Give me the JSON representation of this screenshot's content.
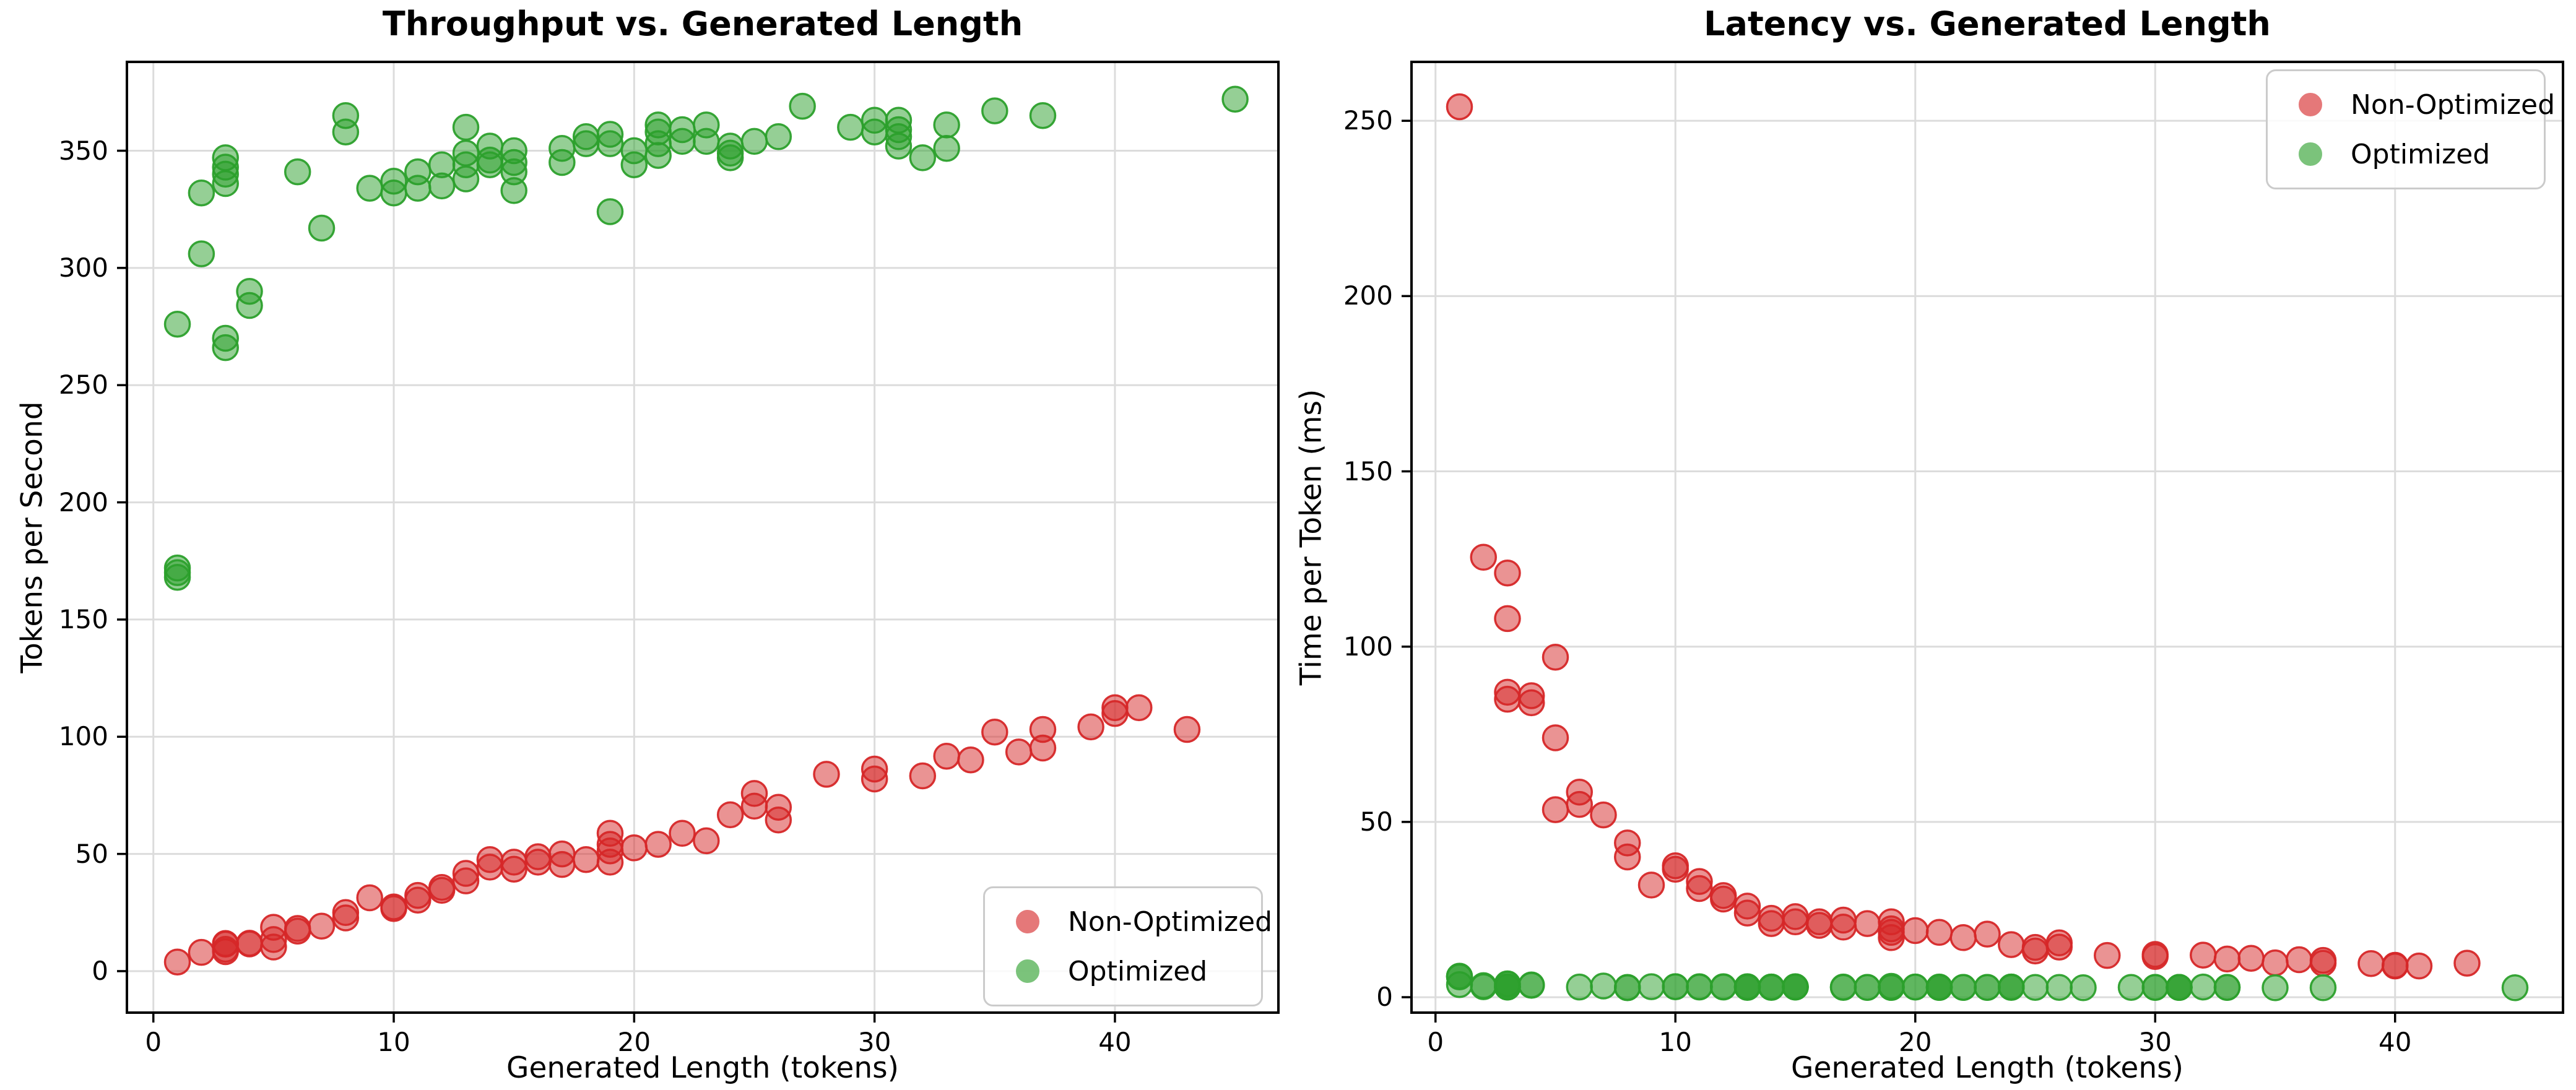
{
  "figure": {
    "background": "#ffffff"
  },
  "chart_data": [
    {
      "type": "scatter",
      "title": "Throughput vs. Generated Length",
      "xlabel": "Generated Length (tokens)",
      "ylabel": "Tokens per Second",
      "xlim": [
        -1.1,
        46.8
      ],
      "ylim": [
        -17.7,
        387.9
      ],
      "xticks": [
        0,
        10,
        20,
        30,
        40
      ],
      "yticks": [
        0,
        50,
        100,
        150,
        200,
        250,
        300,
        350
      ],
      "grid": true,
      "legend_position": "lower right",
      "series": [
        {
          "name": "Non-Optimized",
          "color": "#d62728",
          "x": [
            1,
            2,
            3,
            3,
            3,
            3,
            4,
            4,
            5,
            5,
            5,
            6,
            6,
            7,
            8,
            8,
            9,
            10,
            10,
            11,
            11,
            12,
            12,
            13,
            13,
            14,
            14,
            15,
            15,
            16,
            16,
            17,
            17,
            18,
            19,
            19,
            19,
            19,
            20,
            21,
            22,
            23,
            24,
            25,
            25,
            26,
            26,
            28,
            30,
            30,
            32,
            33,
            34,
            35,
            36,
            37,
            37,
            39,
            40,
            40,
            41,
            43
          ],
          "y": [
            3.9,
            8.0,
            8.3,
            9.3,
            11.5,
            11.8,
            11.6,
            11.9,
            10.3,
            13.5,
            18.7,
            17.1,
            18.2,
            19.2,
            22.7,
            25.0,
            31.3,
            26.7,
            27.4,
            30.3,
            32.3,
            34.5,
            35.7,
            38.5,
            41.7,
            44.4,
            47.6,
            43.5,
            46.5,
            46.5,
            48.8,
            45.5,
            50.0,
            47.6,
            46.5,
            51.3,
            54.1,
            58.8,
            52.6,
            54.1,
            58.8,
            55.6,
            66.7,
            70.4,
            75.8,
            64.5,
            69.9,
            84.0,
            82.0,
            86.2,
            83.3,
            91.7,
            90.1,
            102.0,
            93.5,
            95.2,
            103.1,
            104.2,
            109.9,
            112.4,
            112.4,
            103.1
          ]
        },
        {
          "name": "Optimized",
          "color": "#2ca02c",
          "x": [
            1,
            1,
            1,
            1,
            2,
            2,
            3,
            3,
            3,
            3,
            3,
            3,
            4,
            4,
            6,
            7,
            8,
            8,
            9,
            10,
            10,
            11,
            11,
            12,
            12,
            13,
            13,
            13,
            13,
            14,
            14,
            14,
            15,
            15,
            15,
            15,
            17,
            17,
            18,
            18,
            19,
            19,
            19,
            20,
            20,
            21,
            21,
            21,
            21,
            22,
            22,
            23,
            23,
            24,
            24,
            24,
            25,
            26,
            27,
            29,
            30,
            30,
            31,
            31,
            31,
            31,
            32,
            33,
            33,
            35,
            37,
            45
          ],
          "y": [
            276,
            172,
            170,
            168,
            306,
            332,
            347,
            343,
            340,
            336,
            270,
            266,
            290,
            284,
            341,
            317,
            365,
            358,
            334,
            337,
            332,
            341,
            334,
            344,
            335,
            360,
            349,
            344,
            338,
            352,
            346,
            344,
            350,
            345,
            341,
            333,
            351,
            345,
            356,
            353,
            357,
            353,
            324,
            350,
            344,
            361,
            358,
            353,
            348,
            359,
            354,
            361,
            354,
            352,
            349,
            347,
            354,
            356,
            369,
            360,
            363,
            358,
            363,
            359,
            356,
            352,
            347,
            361,
            351,
            367,
            365,
            372
          ]
        }
      ]
    },
    {
      "type": "scatter",
      "title": "Latency vs. Generated Length",
      "xlabel": "Generated Length (tokens)",
      "ylabel": "Time per Token (ms)",
      "xlim": [
        -1.0,
        47.0
      ],
      "ylim": [
        -4.4,
        266.8
      ],
      "xticks": [
        0,
        10,
        20,
        30,
        40
      ],
      "yticks": [
        0,
        50,
        100,
        150,
        200,
        250
      ],
      "grid": true,
      "legend_position": "upper right",
      "series": [
        {
          "name": "Non-Optimized",
          "color": "#d62728",
          "x": [
            1,
            2,
            3,
            3,
            3,
            3,
            4,
            4,
            5,
            5,
            5,
            6,
            6,
            7,
            8,
            8,
            9,
            10,
            10,
            11,
            11,
            12,
            12,
            13,
            13,
            14,
            14,
            15,
            15,
            16,
            16,
            17,
            17,
            18,
            19,
            19,
            19,
            19,
            20,
            21,
            22,
            23,
            24,
            25,
            25,
            26,
            26,
            28,
            30,
            30,
            32,
            33,
            34,
            35,
            36,
            37,
            37,
            39,
            40,
            40,
            41,
            43
          ],
          "y": [
            254,
            125.5,
            121,
            108,
            87,
            85,
            86,
            84,
            97,
            74,
            53.5,
            58.5,
            55,
            52,
            44,
            40,
            32,
            37.5,
            36.5,
            33,
            31,
            29,
            28,
            26,
            24,
            22.5,
            21,
            23,
            21.5,
            21.5,
            20.5,
            22,
            20,
            21,
            21.5,
            19.5,
            18.5,
            17,
            19,
            18.5,
            17,
            18,
            15,
            14.2,
            13.2,
            15.5,
            14.3,
            11.9,
            12.2,
            11.6,
            12,
            10.9,
            11.1,
            9.8,
            10.7,
            10.5,
            9.7,
            9.6,
            9.1,
            8.9,
            8.9,
            9.7
          ]
        },
        {
          "name": "Optimized",
          "color": "#2ca02c",
          "x": [
            1,
            1,
            1,
            1,
            2,
            2,
            3,
            3,
            3,
            3,
            3,
            3,
            4,
            4,
            6,
            7,
            8,
            8,
            9,
            10,
            10,
            11,
            11,
            12,
            12,
            13,
            13,
            13,
            13,
            14,
            14,
            14,
            15,
            15,
            15,
            15,
            17,
            17,
            18,
            18,
            19,
            19,
            19,
            20,
            20,
            21,
            21,
            21,
            21,
            22,
            22,
            23,
            23,
            24,
            24,
            24,
            25,
            26,
            27,
            29,
            30,
            30,
            31,
            31,
            31,
            31,
            32,
            33,
            33,
            35,
            37,
            45
          ],
          "y": [
            3.6,
            5.8,
            5.9,
            6.0,
            3.3,
            3.0,
            2.9,
            2.9,
            2.9,
            3.0,
            3.7,
            3.8,
            3.4,
            3.5,
            2.9,
            3.2,
            2.7,
            2.8,
            3.0,
            3.0,
            3.0,
            2.9,
            3.0,
            2.9,
            3.0,
            2.8,
            2.9,
            2.9,
            3.0,
            2.8,
            2.9,
            2.9,
            2.9,
            2.9,
            2.9,
            3.0,
            2.8,
            2.9,
            2.8,
            2.8,
            2.8,
            2.8,
            3.1,
            2.9,
            2.9,
            2.8,
            2.8,
            2.8,
            2.9,
            2.8,
            2.8,
            2.8,
            2.8,
            2.8,
            2.9,
            2.9,
            2.8,
            2.8,
            2.7,
            2.8,
            2.8,
            2.8,
            2.8,
            2.8,
            2.8,
            2.8,
            2.9,
            2.8,
            2.8,
            2.7,
            2.7,
            2.7
          ]
        }
      ]
    }
  ]
}
